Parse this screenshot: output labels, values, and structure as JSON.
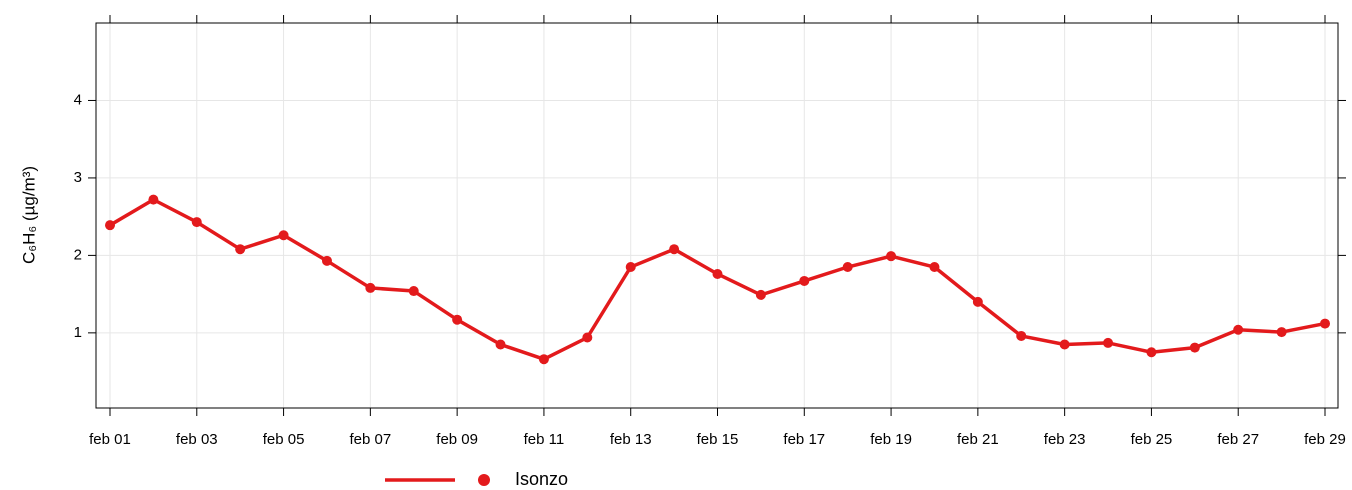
{
  "chart_data": {
    "type": "line",
    "y_label": "C₆H₆ (µg/m³)",
    "categories": [
      "feb 01",
      null,
      "feb 03",
      null,
      "feb 05",
      null,
      "feb 07",
      null,
      "feb 09",
      null,
      "feb 11",
      null,
      "feb 13",
      null,
      "feb 15",
      null,
      "feb 17",
      null,
      "feb 19",
      null,
      "feb 21",
      null,
      "feb 23",
      null,
      "feb 25",
      null,
      "feb 27",
      null,
      "feb 29"
    ],
    "series": [
      {
        "name": "Isonzo",
        "color": "#e31a1c",
        "values": [
          2.39,
          2.72,
          2.43,
          2.08,
          2.26,
          1.93,
          1.58,
          1.54,
          1.17,
          0.85,
          0.66,
          0.94,
          1.85,
          2.08,
          1.76,
          1.49,
          1.67,
          1.85,
          1.99,
          1.85,
          1.4,
          0.96,
          0.85,
          0.87,
          0.75,
          0.81,
          1.04,
          1.01,
          1.12
        ]
      }
    ],
    "ylim": [
      0.03,
      5.0
    ],
    "yticks": [
      1,
      2,
      3,
      4
    ],
    "grid": true
  }
}
